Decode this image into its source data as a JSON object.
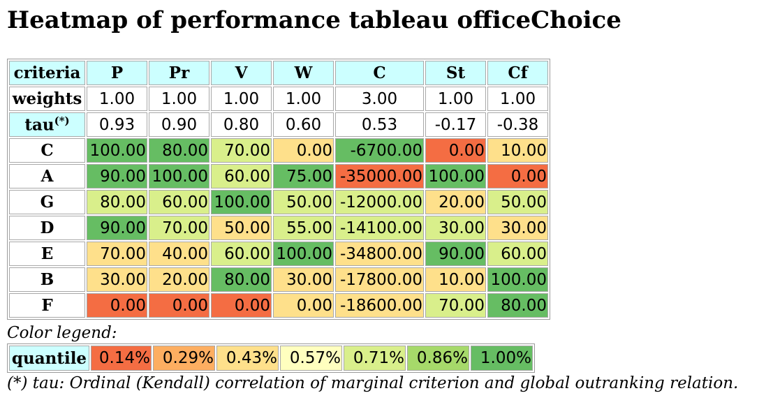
{
  "title": "Heatmap of performance tableau officeChoice",
  "colors": {
    "header_bg": "#ccffff",
    "q1": "#f46d43",
    "q2": "#fdae61",
    "q3": "#fee08b",
    "q4": "#ffffbf",
    "q5": "#d9ef8b",
    "q6": "#a6d96a",
    "q7": "#66bd63"
  },
  "table": {
    "corner_label": "criteria",
    "criteria": [
      "P",
      "Pr",
      "V",
      "W",
      "C",
      "St",
      "Cf"
    ],
    "weights_label": "weights",
    "weights": [
      "1.00",
      "1.00",
      "1.00",
      "1.00",
      "3.00",
      "1.00",
      "1.00"
    ],
    "tau_label": "tau",
    "tau_marker": "(*)",
    "tau": [
      "0.93",
      "0.90",
      "0.80",
      "0.60",
      "0.53",
      "-0.17",
      "-0.38"
    ],
    "rows": [
      {
        "name": "C",
        "values": [
          "100.00",
          "80.00",
          "70.00",
          "0.00",
          "-6700.00",
          "0.00",
          "10.00"
        ],
        "quantiles": [
          7,
          7,
          5,
          3,
          7,
          1,
          3
        ]
      },
      {
        "name": "A",
        "values": [
          "90.00",
          "100.00",
          "60.00",
          "75.00",
          "-35000.00",
          "100.00",
          "0.00"
        ],
        "quantiles": [
          7,
          7,
          5,
          7,
          1,
          7,
          1
        ]
      },
      {
        "name": "G",
        "values": [
          "80.00",
          "60.00",
          "100.00",
          "50.00",
          "-12000.00",
          "20.00",
          "50.00"
        ],
        "quantiles": [
          5,
          5,
          7,
          5,
          5,
          3,
          5
        ]
      },
      {
        "name": "D",
        "values": [
          "90.00",
          "70.00",
          "50.00",
          "55.00",
          "-14100.00",
          "30.00",
          "30.00"
        ],
        "quantiles": [
          7,
          5,
          3,
          5,
          5,
          5,
          3
        ]
      },
      {
        "name": "E",
        "values": [
          "70.00",
          "40.00",
          "60.00",
          "100.00",
          "-34800.00",
          "90.00",
          "60.00"
        ],
        "quantiles": [
          3,
          3,
          5,
          7,
          3,
          7,
          5
        ]
      },
      {
        "name": "B",
        "values": [
          "30.00",
          "20.00",
          "80.00",
          "30.00",
          "-17800.00",
          "10.00",
          "100.00"
        ],
        "quantiles": [
          3,
          3,
          7,
          3,
          3,
          3,
          7
        ]
      },
      {
        "name": "F",
        "values": [
          "0.00",
          "0.00",
          "0.00",
          "0.00",
          "-18600.00",
          "70.00",
          "80.00"
        ],
        "quantiles": [
          1,
          1,
          1,
          3,
          3,
          5,
          7
        ]
      }
    ]
  },
  "legend": {
    "caption": "Color legend:",
    "label": "quantile",
    "entries": [
      "0.14%",
      "0.29%",
      "0.43%",
      "0.57%",
      "0.71%",
      "0.86%",
      "1.00%"
    ]
  },
  "footnote": "(*) tau: Ordinal (Kendall) correlation of marginal criterion and global outranking relation."
}
